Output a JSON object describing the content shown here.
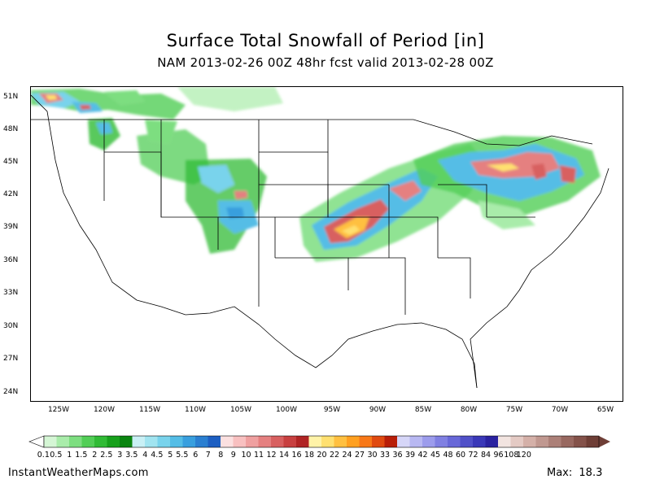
{
  "title": "Surface Total Snowfall of Period [in]",
  "subtitle": "NAM 2013-02-26 00Z 48hr fcst valid 2013-02-28 00Z",
  "footer": {
    "source": "InstantWeatherMaps.com",
    "max_label": "Max:",
    "max_value": "18.3"
  },
  "lat_labels": [
    "51N",
    "48N",
    "45N",
    "42N",
    "39N",
    "36N",
    "33N",
    "30N",
    "27N",
    "24N"
  ],
  "lon_labels": [
    "125W",
    "120W",
    "115W",
    "110W",
    "105W",
    "100W",
    "95W",
    "90W",
    "85W",
    "80W",
    "75W",
    "70W",
    "65W"
  ],
  "colorbar": {
    "colors": [
      "#d5f6d5",
      "#a9ecaa",
      "#7dde80",
      "#52ce56",
      "#30bb35",
      "#17a11c",
      "#0a8510",
      "#c9f0f5",
      "#a1e4f0",
      "#79d3ec",
      "#54bde6",
      "#389fde",
      "#2a7fd1",
      "#1d5fc2",
      "#fbe0e0",
      "#f8c0c0",
      "#efa0a0",
      "#e58080",
      "#d86060",
      "#c84040",
      "#b02424",
      "#fff3a8",
      "#ffe070",
      "#ffc040",
      "#ffa020",
      "#f87818",
      "#e04a10",
      "#b81e08",
      "#d6d6f8",
      "#b8b8f2",
      "#9c9cec",
      "#8080e2",
      "#6868d8",
      "#5050c8",
      "#3a38b8",
      "#2a22a0",
      "#f2e4e0",
      "#e4cac4",
      "#d4b0a8",
      "#c09890",
      "#ac8078",
      "#986860",
      "#84524a",
      "#6e3e36"
    ],
    "labels": [
      "0.1",
      "0.5",
      "1",
      "1.5",
      "2",
      "2.5",
      "3",
      "3.5",
      "4",
      "4.5",
      "5",
      "5.5",
      "6",
      "7",
      "8",
      "9",
      "10",
      "11",
      "12",
      "14",
      "16",
      "18",
      "20",
      "22",
      "24",
      "27",
      "30",
      "33",
      "36",
      "39",
      "42",
      "45",
      "48",
      "60",
      "72",
      "84",
      "96",
      "108",
      "120"
    ]
  }
}
